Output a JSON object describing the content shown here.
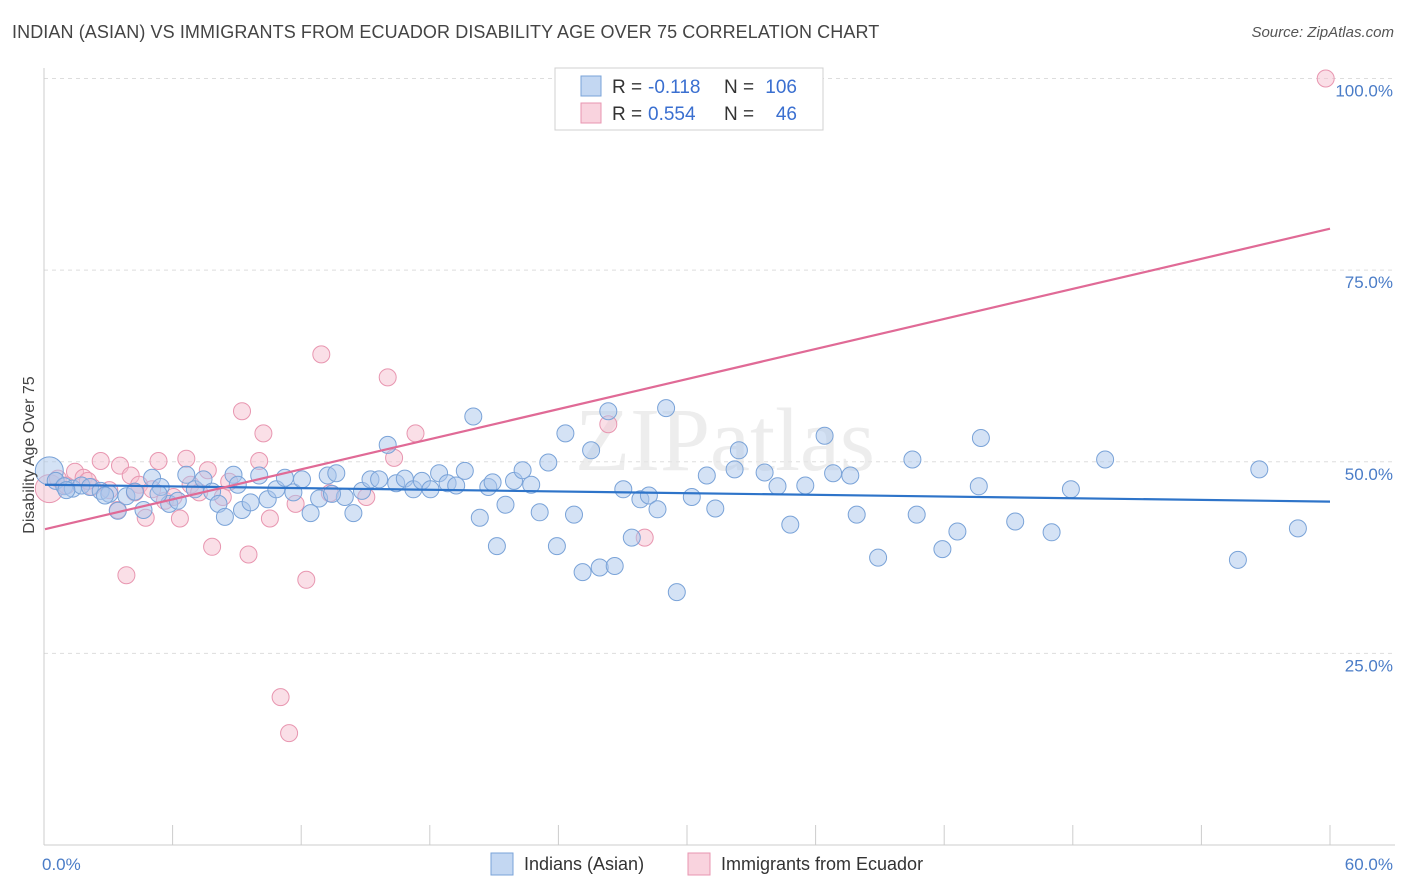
{
  "title": "INDIAN (ASIAN) VS IMMIGRANTS FROM ECUADOR DISABILITY AGE OVER 75 CORRELATION CHART",
  "source": "Source: ZipAtlas.com",
  "watermark": "ZIPatlas",
  "colors": {
    "blue_fill": "#a9c6ec",
    "blue_stroke": "#7aa3d8",
    "blue_line": "#2e74c9",
    "pink_fill": "#f6c0d0",
    "pink_stroke": "#e896b0",
    "pink_line": "#e06a96",
    "tick_text": "#4a7cc7",
    "grid": "#dddddd"
  },
  "legend_top": {
    "rows": [
      {
        "r_label": "R = ",
        "r_value": "-0.118",
        "n_label": "N = ",
        "n_value": "106",
        "color": "blue"
      },
      {
        "r_label": "R = ",
        "r_value": "0.554",
        "n_label": "N = ",
        "n_value": "46",
        "color": "pink"
      }
    ]
  },
  "legend_bottom": {
    "items": [
      {
        "label": "Indians (Asian)",
        "color": "blue"
      },
      {
        "label": "Immigrants from Ecuador",
        "color": "pink"
      }
    ]
  },
  "chart_data": {
    "type": "scatter",
    "ylabel": "Disability Age Over 75",
    "xlim": [
      0,
      60
    ],
    "ylim": [
      0,
      105
    ],
    "x_tick_labels": [
      "0.0%",
      "60.0%"
    ],
    "y_ticks": [
      {
        "value": 25,
        "label": "25.0%"
      },
      {
        "value": 50,
        "label": "50.0%"
      },
      {
        "value": 75,
        "label": "75.0%"
      },
      {
        "value": 100,
        "label": "100.0%"
      }
    ],
    "grid": true,
    "series": [
      {
        "name": "Indians (Asian)",
        "color": "blue",
        "trend": {
          "x0": 0,
          "y0": 47.0,
          "x1": 60,
          "y1": 44.8
        },
        "points": [
          [
            0.2,
            48.8
          ],
          [
            0.5,
            47.5
          ],
          [
            0.9,
            46.8
          ],
          [
            1.3,
            46.5
          ],
          [
            1.7,
            46.9
          ],
          [
            2.1,
            46.7
          ],
          [
            2.6,
            46.2
          ],
          [
            3.0,
            45.8
          ],
          [
            3.4,
            43.6
          ],
          [
            3.8,
            45.5
          ],
          [
            4.2,
            46.1
          ],
          [
            4.6,
            43.7
          ],
          [
            5.0,
            47.9
          ],
          [
            5.4,
            46.7
          ],
          [
            5.8,
            44.5
          ],
          [
            6.2,
            44.9
          ],
          [
            6.6,
            48.3
          ],
          [
            7.0,
            46.4
          ],
          [
            7.4,
            47.7
          ],
          [
            7.8,
            46.1
          ],
          [
            8.1,
            44.5
          ],
          [
            8.4,
            42.8
          ],
          [
            8.8,
            48.3
          ],
          [
            9.2,
            43.7
          ],
          [
            9.6,
            44.7
          ],
          [
            10.0,
            48.2
          ],
          [
            10.4,
            45.1
          ],
          [
            10.8,
            46.4
          ],
          [
            11.2,
            47.9
          ],
          [
            11.6,
            46.0
          ],
          [
            12.0,
            47.7
          ],
          [
            12.4,
            43.3
          ],
          [
            12.8,
            45.2
          ],
          [
            13.2,
            48.2
          ],
          [
            13.6,
            48.5
          ],
          [
            14.0,
            45.4
          ],
          [
            14.4,
            43.3
          ],
          [
            14.8,
            46.2
          ],
          [
            15.2,
            47.7
          ],
          [
            15.6,
            47.7
          ],
          [
            16.0,
            52.2
          ],
          [
            16.4,
            47.2
          ],
          [
            16.8,
            47.8
          ],
          [
            17.2,
            46.4
          ],
          [
            17.6,
            47.5
          ],
          [
            18.0,
            46.4
          ],
          [
            18.4,
            48.5
          ],
          [
            18.8,
            47.2
          ],
          [
            19.2,
            46.9
          ],
          [
            19.6,
            48.8
          ],
          [
            20.0,
            55.9
          ],
          [
            20.3,
            42.7
          ],
          [
            20.7,
            46.7
          ],
          [
            21.1,
            39.0
          ],
          [
            21.5,
            44.4
          ],
          [
            21.9,
            47.5
          ],
          [
            22.3,
            48.9
          ],
          [
            22.7,
            47.0
          ],
          [
            23.1,
            43.4
          ],
          [
            23.5,
            49.9
          ],
          [
            23.9,
            39.0
          ],
          [
            24.3,
            53.7
          ],
          [
            24.7,
            43.1
          ],
          [
            25.1,
            35.6
          ],
          [
            25.5,
            51.5
          ],
          [
            25.9,
            36.2
          ],
          [
            26.3,
            56.6
          ],
          [
            26.6,
            36.4
          ],
          [
            27.0,
            46.4
          ],
          [
            27.4,
            40.1
          ],
          [
            27.8,
            45.1
          ],
          [
            28.2,
            45.6
          ],
          [
            28.6,
            43.8
          ],
          [
            29.0,
            57.0
          ],
          [
            29.5,
            33.0
          ],
          [
            30.2,
            45.4
          ],
          [
            30.9,
            48.2
          ],
          [
            31.3,
            43.9
          ],
          [
            32.2,
            49.0
          ],
          [
            32.4,
            51.5
          ],
          [
            33.6,
            48.6
          ],
          [
            34.2,
            46.8
          ],
          [
            34.8,
            41.8
          ],
          [
            35.5,
            46.9
          ],
          [
            36.4,
            53.4
          ],
          [
            36.8,
            48.5
          ],
          [
            37.6,
            48.2
          ],
          [
            37.9,
            43.1
          ],
          [
            38.9,
            37.5
          ],
          [
            40.5,
            50.3
          ],
          [
            40.7,
            43.1
          ],
          [
            41.9,
            38.6
          ],
          [
            42.6,
            40.9
          ],
          [
            43.6,
            46.8
          ],
          [
            43.7,
            53.1
          ],
          [
            45.3,
            42.2
          ],
          [
            47.0,
            40.8
          ],
          [
            47.9,
            46.4
          ],
          [
            49.5,
            50.3
          ],
          [
            55.7,
            37.2
          ],
          [
            56.7,
            49.0
          ],
          [
            58.5,
            41.3
          ],
          [
            1.0,
            46.3
          ],
          [
            2.8,
            45.6
          ],
          [
            5.3,
            45.8
          ],
          [
            9.0,
            47.0
          ],
          [
            13.4,
            45.8
          ],
          [
            20.9,
            47.3
          ]
        ]
      },
      {
        "name": "Immigrants from Ecuador",
        "color": "pink",
        "trend": {
          "x0": 0,
          "y0": 41.2,
          "x1": 60,
          "y1": 80.4
        },
        "points": [
          [
            0.2,
            46.5
          ],
          [
            0.6,
            47.8
          ],
          [
            1.0,
            46.9
          ],
          [
            1.4,
            48.7
          ],
          [
            1.8,
            47.9
          ],
          [
            2.2,
            46.7
          ],
          [
            2.6,
            50.1
          ],
          [
            3.0,
            46.3
          ],
          [
            3.4,
            43.7
          ],
          [
            3.5,
            49.5
          ],
          [
            3.8,
            35.2
          ],
          [
            4.0,
            48.2
          ],
          [
            4.4,
            47.0
          ],
          [
            4.7,
            42.7
          ],
          [
            5.0,
            46.4
          ],
          [
            5.3,
            50.1
          ],
          [
            5.6,
            44.9
          ],
          [
            6.0,
            45.4
          ],
          [
            6.3,
            42.6
          ],
          [
            6.6,
            50.4
          ],
          [
            6.8,
            47.0
          ],
          [
            7.2,
            46.0
          ],
          [
            7.6,
            48.9
          ],
          [
            7.8,
            38.9
          ],
          [
            8.3,
            45.4
          ],
          [
            9.2,
            56.6
          ],
          [
            9.5,
            37.9
          ],
          [
            10.0,
            50.1
          ],
          [
            10.2,
            53.7
          ],
          [
            10.5,
            42.6
          ],
          [
            11.0,
            19.3
          ],
          [
            11.4,
            14.6
          ],
          [
            11.7,
            44.5
          ],
          [
            12.2,
            34.6
          ],
          [
            12.9,
            64.0
          ],
          [
            13.3,
            45.9
          ],
          [
            15.0,
            45.4
          ],
          [
            16.0,
            61.0
          ],
          [
            16.3,
            50.5
          ],
          [
            17.3,
            53.7
          ],
          [
            26.3,
            54.9
          ],
          [
            28.0,
            40.1
          ],
          [
            59.8,
            100.0
          ],
          [
            2.0,
            47.5
          ],
          [
            4.2,
            46.0
          ],
          [
            8.6,
            47.4
          ]
        ]
      }
    ]
  }
}
